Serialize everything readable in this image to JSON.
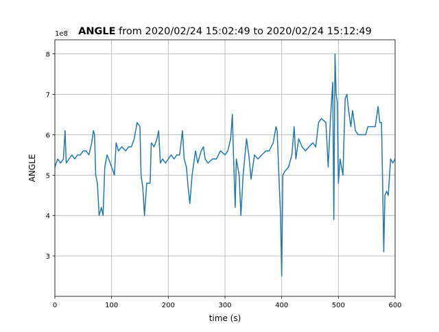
{
  "chart_data": {
    "type": "line",
    "title_bold": "ANGLE",
    "title": "from 2020/02/24 15:02:49 to 2020/02/24 15:12:49",
    "xlabel": "time (s)",
    "ylabel": "ANGLE",
    "offset_label": "1e8",
    "xlim": [
      0,
      600
    ],
    "ylim": [
      2.0,
      8.35
    ],
    "xticks": [
      0,
      100,
      200,
      300,
      400,
      500,
      600
    ],
    "yticks": [
      3,
      4,
      5,
      6,
      7,
      8
    ],
    "grid": true,
    "series": [
      {
        "name": "ANGLE",
        "color": "#1f77b4",
        "x": [
          0,
          5,
          10,
          15,
          18,
          20,
          25,
          30,
          35,
          40,
          45,
          50,
          55,
          60,
          65,
          68,
          70,
          72,
          75,
          78,
          82,
          85,
          88,
          92,
          95,
          100,
          105,
          108,
          112,
          118,
          125,
          130,
          135,
          140,
          145,
          150,
          152,
          155,
          158,
          162,
          168,
          170,
          175,
          180,
          183,
          186,
          190,
          195,
          200,
          205,
          210,
          215,
          220,
          225,
          228,
          232,
          235,
          238,
          242,
          248,
          252,
          258,
          262,
          265,
          270,
          278,
          285,
          292,
          300,
          305,
          310,
          313,
          315,
          318,
          320,
          325,
          328,
          332,
          338,
          342,
          346,
          352,
          358,
          365,
          372,
          378,
          385,
          390,
          392,
          395,
          398,
          400,
          402,
          406,
          412,
          418,
          422,
          425,
          430,
          436,
          442,
          448,
          455,
          460,
          465,
          470,
          478,
          482,
          486,
          490,
          492,
          494,
          496,
          498,
          500,
          503,
          508,
          512,
          515,
          518,
          522,
          525,
          530,
          535,
          540,
          548,
          552,
          558,
          565,
          570,
          573,
          576,
          578,
          580,
          582,
          585,
          588,
          592,
          596,
          600
        ],
        "values": [
          5.2,
          5.4,
          5.3,
          5.4,
          6.1,
          5.3,
          5.4,
          5.5,
          5.4,
          5.5,
          5.5,
          5.6,
          5.6,
          5.5,
          5.8,
          6.1,
          6.0,
          5.0,
          4.8,
          4.0,
          4.2,
          4.0,
          5.2,
          5.5,
          5.4,
          5.2,
          5.0,
          5.8,
          5.6,
          5.7,
          5.6,
          5.7,
          5.7,
          5.9,
          6.3,
          6.2,
          5.0,
          4.7,
          4.0,
          4.8,
          4.8,
          5.8,
          5.7,
          5.9,
          6.1,
          5.3,
          5.4,
          5.3,
          5.4,
          5.5,
          5.4,
          5.5,
          5.5,
          6.1,
          5.4,
          5.2,
          4.7,
          4.3,
          5.0,
          5.6,
          5.3,
          5.6,
          5.7,
          5.4,
          5.3,
          5.4,
          5.4,
          5.6,
          5.5,
          5.6,
          5.9,
          6.5,
          5.5,
          4.2,
          5.4,
          5.0,
          4.0,
          5.0,
          5.9,
          5.5,
          4.9,
          5.5,
          5.4,
          5.5,
          5.6,
          5.6,
          5.8,
          6.2,
          6.1,
          5.0,
          4.0,
          2.5,
          5.0,
          5.1,
          5.2,
          5.5,
          6.2,
          5.4,
          5.9,
          5.7,
          5.6,
          5.7,
          5.8,
          5.7,
          6.3,
          6.4,
          6.3,
          5.2,
          6.4,
          7.3,
          3.9,
          8.0,
          7.0,
          6.8,
          4.8,
          5.4,
          5.0,
          6.9,
          7.0,
          6.6,
          6.2,
          6.6,
          6.1,
          6.0,
          6.0,
          6.0,
          6.2,
          6.2,
          6.2,
          6.7,
          6.3,
          6.3,
          4.8,
          3.1,
          4.5,
          4.6,
          4.5,
          5.4,
          5.3,
          5.4
        ]
      }
    ]
  }
}
